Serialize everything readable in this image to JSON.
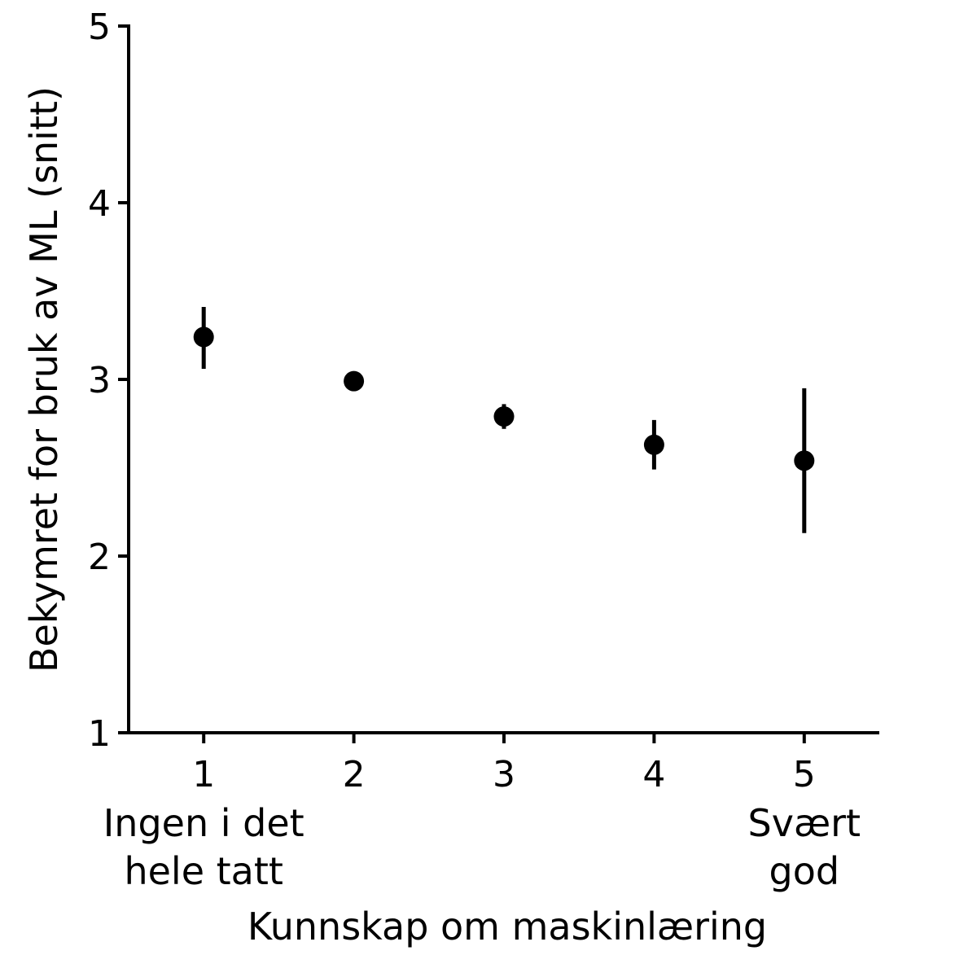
{
  "chart_data": {
    "type": "scatter",
    "title": "",
    "xlabel": "Kunnskap om maskinlæring",
    "ylabel": "Bekymret for bruk av ML (snitt)",
    "x": [
      1,
      2,
      3,
      4,
      5
    ],
    "x_ticks": [
      "1",
      "2",
      "3",
      "4",
      "5"
    ],
    "x_tick_sublabels": [
      {
        "x": 1,
        "lines": [
          "Ingen i det",
          "hele tatt"
        ]
      },
      {
        "x": 5,
        "lines": [
          "Svært",
          "god"
        ]
      }
    ],
    "y_ticks": [
      "1",
      "2",
      "3",
      "4",
      "5"
    ],
    "xlim": [
      0.5,
      5.5
    ],
    "ylim": [
      1,
      5
    ],
    "grid": false,
    "legend": "none",
    "series": [
      {
        "values": [
          3.24,
          2.99,
          2.79,
          2.63,
          2.54
        ],
        "error_low": [
          3.06,
          2.97,
          2.72,
          2.49,
          2.13
        ],
        "error_high": [
          3.41,
          3.01,
          2.86,
          2.77,
          2.95
        ],
        "color": "#000000"
      }
    ]
  }
}
